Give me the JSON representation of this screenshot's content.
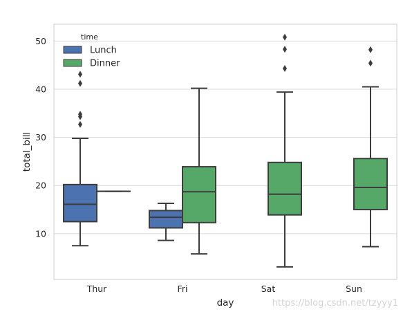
{
  "chart_data": {
    "type": "box",
    "xlabel": "day",
    "ylabel": "total_bill",
    "categories": [
      "Thur",
      "Fri",
      "Sat",
      "Sun"
    ],
    "yticks": [
      "10",
      "20",
      "30",
      "40",
      "50"
    ],
    "ylim": [
      0.5,
      53.5
    ],
    "grid": "horizontal",
    "legend": {
      "title": "time",
      "placement": "upper-left",
      "entries": [
        "Lunch",
        "Dinner"
      ]
    },
    "series": [
      {
        "name": "Lunch",
        "color": "#4c72b0",
        "boxes": [
          {
            "category": "Thur",
            "whislo": 7.5,
            "q1": 12.5,
            "median": 16.1,
            "q3": 20.2,
            "whishi": 29.8,
            "fliers": [
              32.7,
              34.3,
              34.8,
              41.2,
              43.1
            ]
          },
          {
            "category": "Fri",
            "whislo": 8.6,
            "q1": 11.2,
            "median": 13.4,
            "q3": 14.8,
            "whishi": 16.3,
            "fliers": []
          }
        ]
      },
      {
        "name": "Dinner",
        "color": "#55a868",
        "boxes": [
          {
            "category": "Thur",
            "whislo": 18.8,
            "q1": 18.8,
            "median": 18.8,
            "q3": 18.8,
            "whishi": 18.8,
            "fliers": []
          },
          {
            "category": "Fri",
            "whislo": 5.8,
            "q1": 12.3,
            "median": 18.7,
            "q3": 23.9,
            "whishi": 40.2,
            "fliers": []
          },
          {
            "category": "Sat",
            "whislo": 3.1,
            "q1": 13.9,
            "median": 18.2,
            "q3": 24.8,
            "whishi": 39.4,
            "fliers": [
              44.3,
              48.3,
              50.8
            ]
          },
          {
            "category": "Sun",
            "whislo": 7.3,
            "q1": 15.0,
            "median": 19.6,
            "q3": 25.6,
            "whishi": 40.5,
            "fliers": [
              45.4,
              48.2
            ]
          }
        ]
      }
    ],
    "watermark": "https://blog.csdn.net/tzyyy1"
  }
}
